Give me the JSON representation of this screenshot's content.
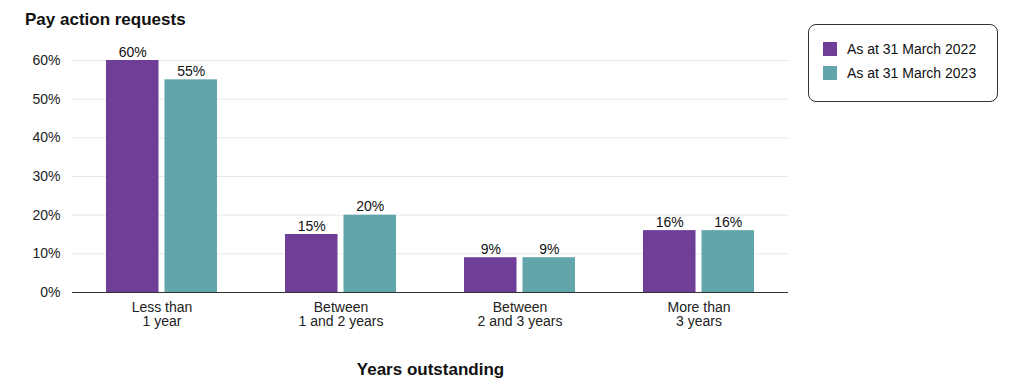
{
  "chart_data": {
    "type": "bar",
    "title": "Pay action requests",
    "x_label": "Years outstanding",
    "categories": [
      "Less than\n1 year",
      "Between\n1 and 2 years",
      "Between\n2 and 3 years",
      "More than\n3 years"
    ],
    "series": [
      {
        "name": "As at 31 March 2022",
        "color": "#6f3f98",
        "values": [
          60,
          15,
          9,
          16
        ],
        "value_labels": [
          "60%",
          "15%",
          "9%",
          "16%"
        ]
      },
      {
        "name": "As at 31 March 2023",
        "color": "#62a6ab",
        "values": [
          55,
          20,
          9,
          16
        ],
        "value_labels": [
          "55%",
          "20%",
          "9%",
          "16%"
        ]
      }
    ],
    "ylim": [
      0,
      60
    ],
    "yticks": [
      {
        "value": 0,
        "label": "0%"
      },
      {
        "value": 10,
        "label": "10%"
      },
      {
        "value": 20,
        "label": "20%"
      },
      {
        "value": 30,
        "label": "30%"
      },
      {
        "value": 40,
        "label": "40%"
      },
      {
        "value": 50,
        "label": "50%"
      },
      {
        "value": 60,
        "label": "60%"
      }
    ],
    "grid": true,
    "data_labels": true,
    "legend": "top-right"
  }
}
